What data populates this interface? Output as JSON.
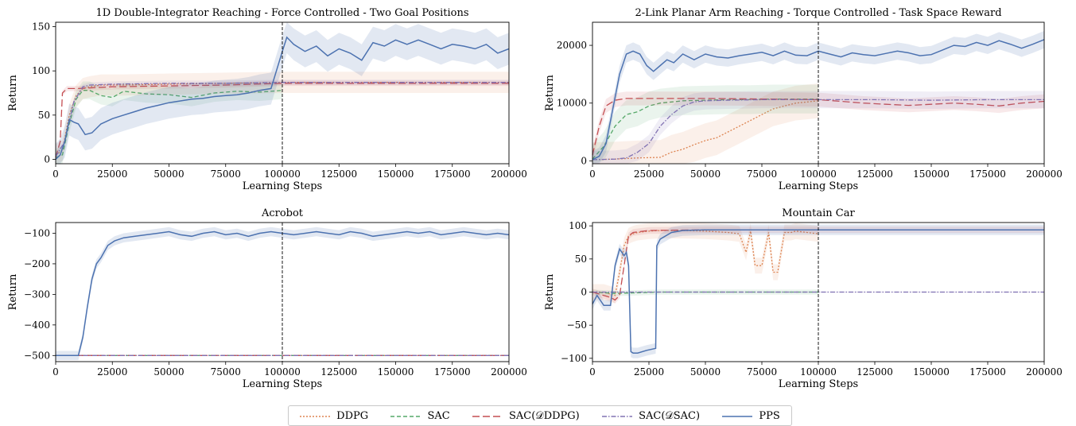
{
  "chart_data": [
    {
      "type": "line",
      "title": "1D Double-Integrator Reaching - Force Controlled - Two Goal Positions",
      "xlabel": "Learning Steps",
      "ylabel": "Return",
      "xlim": [
        0,
        200000
      ],
      "ylim": [
        -5,
        155
      ],
      "xticks": [
        0,
        25000,
        50000,
        75000,
        100000,
        125000,
        150000,
        175000,
        200000
      ],
      "yticks": [
        0,
        50,
        100,
        150
      ],
      "vline": 100000,
      "series": [
        {
          "name": "DDPG",
          "x": [
            0,
            3000,
            6000,
            9000,
            12000,
            15000,
            20000,
            30000,
            50000,
            75000,
            100000,
            125000,
            150000,
            175000,
            200000
          ],
          "y": [
            5,
            10,
            50,
            72,
            80,
            82,
            84,
            84,
            85,
            86,
            87,
            87,
            87,
            87,
            87
          ],
          "band": 12
        },
        {
          "name": "SAC",
          "x": [
            0,
            3000,
            6000,
            9000,
            12000,
            15000,
            20000,
            25000,
            30000,
            40000,
            50000,
            60000,
            70000,
            80000,
            90000,
            100000
          ],
          "y": [
            2,
            5,
            40,
            68,
            78,
            78,
            72,
            70,
            77,
            74,
            73,
            70,
            75,
            77,
            76,
            78
          ],
          "band": 10
        },
        {
          "name": "SAC(D_DDPG)",
          "x": [
            0,
            2000,
            3000,
            5000,
            10000,
            25000,
            50000,
            75000,
            100000,
            125000,
            150000,
            175000,
            200000
          ],
          "y": [
            2,
            20,
            75,
            80,
            80,
            82,
            83,
            84,
            86,
            86,
            86,
            86,
            86
          ],
          "band": 3
        },
        {
          "name": "SAC(D_SAC)",
          "x": [
            0,
            4000,
            8000,
            12000,
            15000,
            25000,
            50000,
            75000,
            100000,
            125000,
            150000,
            175000,
            200000
          ],
          "y": [
            3,
            20,
            65,
            82,
            84,
            85,
            86,
            86,
            87,
            87,
            87,
            87,
            87
          ],
          "band": 3
        },
        {
          "name": "PPS",
          "x": [
            0,
            2000,
            4000,
            6000,
            8000,
            10000,
            13000,
            16000,
            20000,
            25000,
            30000,
            35000,
            40000,
            45000,
            50000,
            55000,
            60000,
            65000,
            70000,
            75000,
            80000,
            85000,
            90000,
            95000,
            100000,
            102000,
            105000,
            110000,
            115000,
            120000,
            125000,
            130000,
            135000,
            140000,
            145000,
            150000,
            155000,
            160000,
            165000,
            170000,
            175000,
            180000,
            185000,
            190000,
            195000,
            200000
          ],
          "y": [
            0,
            5,
            20,
            45,
            42,
            40,
            28,
            30,
            40,
            46,
            50,
            54,
            58,
            61,
            64,
            66,
            68,
            69,
            71,
            72,
            73,
            75,
            78,
            80,
            122,
            138,
            130,
            122,
            128,
            117,
            125,
            120,
            112,
            132,
            128,
            135,
            130,
            135,
            130,
            125,
            130,
            128,
            125,
            130,
            120,
            125
          ],
          "band": 18
        }
      ]
    },
    {
      "type": "line",
      "title": "2-Link Planar Arm Reaching - Torque Controlled - Task Space Reward",
      "xlabel": "Learning Steps",
      "ylabel": "Return",
      "xlim": [
        0,
        200000
      ],
      "ylim": [
        -500,
        24000
      ],
      "xticks": [
        0,
        25000,
        50000,
        75000,
        100000,
        125000,
        150000,
        175000,
        200000
      ],
      "yticks": [
        0,
        10000,
        20000
      ],
      "vline": 100000,
      "series": [
        {
          "name": "DDPG",
          "x": [
            0,
            10000,
            20000,
            30000,
            35000,
            40000,
            45000,
            50000,
            55000,
            60000,
            65000,
            70000,
            75000,
            80000,
            85000,
            90000,
            95000,
            100000
          ],
          "y": [
            200,
            300,
            500,
            600,
            1500,
            2000,
            2800,
            3500,
            4000,
            5000,
            6000,
            7000,
            8000,
            9000,
            9500,
            10000,
            10200,
            10400
          ],
          "band": 3000
        },
        {
          "name": "SAC",
          "x": [
            0,
            5000,
            10000,
            15000,
            20000,
            25000,
            30000,
            35000,
            40000,
            50000,
            60000,
            70000,
            80000,
            90000,
            100000
          ],
          "y": [
            300,
            2500,
            6000,
            8000,
            8500,
            9500,
            10000,
            10200,
            10400,
            10500,
            10600,
            10600,
            10700,
            10700,
            10700
          ],
          "band": 2500
        },
        {
          "name": "SAC(D_DDPG)",
          "x": [
            0,
            3000,
            6000,
            10000,
            15000,
            25000,
            50000,
            75000,
            100000,
            110000,
            120000,
            130000,
            140000,
            150000,
            160000,
            170000,
            180000,
            190000,
            200000
          ],
          "y": [
            1000,
            6000,
            9500,
            10500,
            10800,
            10800,
            10800,
            10700,
            10600,
            10300,
            10000,
            9800,
            9600,
            9800,
            10000,
            9800,
            9500,
            10000,
            10300
          ],
          "band": 1200
        },
        {
          "name": "SAC(D_SAC)",
          "x": [
            0,
            10000,
            15000,
            20000,
            25000,
            30000,
            35000,
            40000,
            45000,
            50000,
            60000,
            75000,
            100000,
            125000,
            150000,
            175000,
            200000
          ],
          "y": [
            200,
            300,
            500,
            1500,
            3000,
            6000,
            8000,
            9500,
            10200,
            10400,
            10500,
            10600,
            10600,
            10600,
            10500,
            10600,
            10600
          ],
          "band": 1500
        },
        {
          "name": "PPS",
          "x": [
            0,
            3000,
            6000,
            9000,
            12000,
            15000,
            18000,
            21000,
            24000,
            27000,
            30000,
            33000,
            36000,
            40000,
            45000,
            50000,
            55000,
            60000,
            65000,
            70000,
            75000,
            80000,
            85000,
            90000,
            95000,
            100000,
            105000,
            110000,
            115000,
            120000,
            125000,
            130000,
            135000,
            140000,
            145000,
            150000,
            155000,
            160000,
            165000,
            170000,
            175000,
            180000,
            185000,
            190000,
            195000,
            200000
          ],
          "y": [
            200,
            800,
            3000,
            9000,
            15000,
            18500,
            19000,
            18500,
            16500,
            15500,
            16500,
            17500,
            17000,
            18500,
            17500,
            18500,
            18000,
            17800,
            18200,
            18500,
            18800,
            18200,
            19000,
            18300,
            18200,
            19000,
            18500,
            18000,
            18700,
            18400,
            18200,
            18600,
            19000,
            18700,
            18200,
            18400,
            19200,
            20000,
            19800,
            20500,
            20000,
            20800,
            20200,
            19500,
            20200,
            21000
          ],
          "band": 1500
        }
      ]
    },
    {
      "type": "line",
      "title": "Acrobot",
      "xlabel": "Learning Steps",
      "ylabel": "Return",
      "xlim": [
        0,
        200000
      ],
      "ylim": [
        -520,
        -65
      ],
      "xticks": [
        0,
        25000,
        50000,
        75000,
        100000,
        125000,
        150000,
        175000,
        200000
      ],
      "yticks": [
        -100,
        -200,
        -300,
        -400,
        -500
      ],
      "vline": 100000,
      "series": [
        {
          "name": "DDPG",
          "x": [
            0,
            200000
          ],
          "y": [
            -500,
            -500
          ],
          "band": 0
        },
        {
          "name": "SAC",
          "x": [
            0,
            200000
          ],
          "y": [
            -500,
            -500
          ],
          "band": 0
        },
        {
          "name": "SAC(D_DDPG)",
          "x": [
            0,
            200000
          ],
          "y": [
            -500,
            -500
          ],
          "band": 0
        },
        {
          "name": "SAC(D_SAC)",
          "x": [
            0,
            200000
          ],
          "y": [
            -500,
            -500
          ],
          "band": 0
        },
        {
          "name": "PPS",
          "x": [
            0,
            10000,
            12000,
            14000,
            16000,
            18000,
            20000,
            23000,
            26000,
            30000,
            35000,
            40000,
            45000,
            50000,
            55000,
            60000,
            65000,
            70000,
            75000,
            80000,
            85000,
            90000,
            95000,
            100000,
            105000,
            110000,
            115000,
            120000,
            125000,
            130000,
            135000,
            140000,
            145000,
            150000,
            155000,
            160000,
            165000,
            170000,
            175000,
            180000,
            185000,
            190000,
            195000,
            200000
          ],
          "y": [
            -500,
            -500,
            -440,
            -340,
            -250,
            -200,
            -180,
            -140,
            -125,
            -115,
            -110,
            -105,
            -100,
            -95,
            -105,
            -110,
            -100,
            -95,
            -105,
            -100,
            -110,
            -100,
            -95,
            -100,
            -105,
            -100,
            -95,
            -100,
            -105,
            -95,
            -100,
            -110,
            -105,
            -100,
            -95,
            -100,
            -95,
            -105,
            -100,
            -95,
            -100,
            -105,
            -100,
            -105
          ],
          "band": 15
        }
      ]
    },
    {
      "type": "line",
      "title": "Mountain Car",
      "xlabel": "Learning Steps",
      "ylabel": "Return",
      "xlim": [
        0,
        200000
      ],
      "ylim": [
        -105,
        105
      ],
      "xticks": [
        0,
        25000,
        50000,
        75000,
        100000,
        125000,
        150000,
        175000,
        200000
      ],
      "yticks": [
        100,
        50,
        0,
        -50,
        -100
      ],
      "vline": 100000,
      "series": [
        {
          "name": "DDPG",
          "x": [
            0,
            5000,
            10000,
            12000,
            14000,
            16000,
            18000,
            20000,
            25000,
            30000,
            40000,
            50000,
            60000,
            65000,
            68000,
            70000,
            72000,
            75000,
            78000,
            80000,
            82000,
            85000,
            88000,
            90000,
            95000,
            100000
          ],
          "y": [
            0,
            0,
            -5,
            30,
            70,
            85,
            88,
            90,
            92,
            93,
            93,
            92,
            90,
            88,
            60,
            92,
            40,
            40,
            90,
            30,
            30,
            90,
            90,
            92,
            90,
            88
          ],
          "band": 12
        },
        {
          "name": "SAC",
          "x": [
            0,
            10000,
            20000,
            30000,
            50000,
            75000,
            100000
          ],
          "y": [
            0,
            -2,
            -1,
            0,
            0,
            0,
            0
          ],
          "band": 4
        },
        {
          "name": "SAC(D_DDPG)",
          "x": [
            0,
            5000,
            8000,
            10000,
            12000,
            14000,
            16000,
            18000,
            25000,
            50000,
            75000,
            100000,
            125000,
            150000,
            175000,
            200000
          ],
          "y": [
            0,
            -5,
            -8,
            -12,
            -5,
            40,
            85,
            90,
            93,
            94,
            94,
            94,
            94,
            94,
            94,
            94
          ],
          "band": 5
        },
        {
          "name": "SAC(D_SAC)",
          "x": [
            0,
            50000,
            100000,
            150000,
            200000
          ],
          "y": [
            0,
            0,
            0,
            0,
            0
          ],
          "band": 1
        },
        {
          "name": "PPS",
          "x": [
            0,
            2000,
            5000,
            8000,
            10000,
            12000,
            14000,
            15000,
            16000,
            17000,
            18000,
            20000,
            24000,
            28000,
            28500,
            30000,
            35000,
            40000,
            50000,
            75000,
            100000,
            125000,
            150000,
            175000,
            200000
          ],
          "y": [
            -18,
            -5,
            -20,
            -20,
            40,
            65,
            55,
            60,
            40,
            -90,
            -92,
            -92,
            -88,
            -85,
            70,
            80,
            90,
            93,
            94,
            94,
            94,
            94,
            94,
            94,
            94
          ],
          "band": 8
        }
      ]
    }
  ],
  "legend": {
    "items": [
      {
        "label": "DDPG",
        "color": "#dd8452",
        "dash": "2,2"
      },
      {
        "label": "SAC",
        "color": "#55a868",
        "dash": "5,3"
      },
      {
        "label": "SAC(𝒟DDPG)",
        "color": "#c44e52",
        "dash": "9,4"
      },
      {
        "label": "SAC(𝒟SAC)",
        "color": "#8172b3",
        "dash": "6,2,1.5,2"
      },
      {
        "label": "PPS",
        "color": "#4c72b0",
        "dash": ""
      }
    ]
  }
}
